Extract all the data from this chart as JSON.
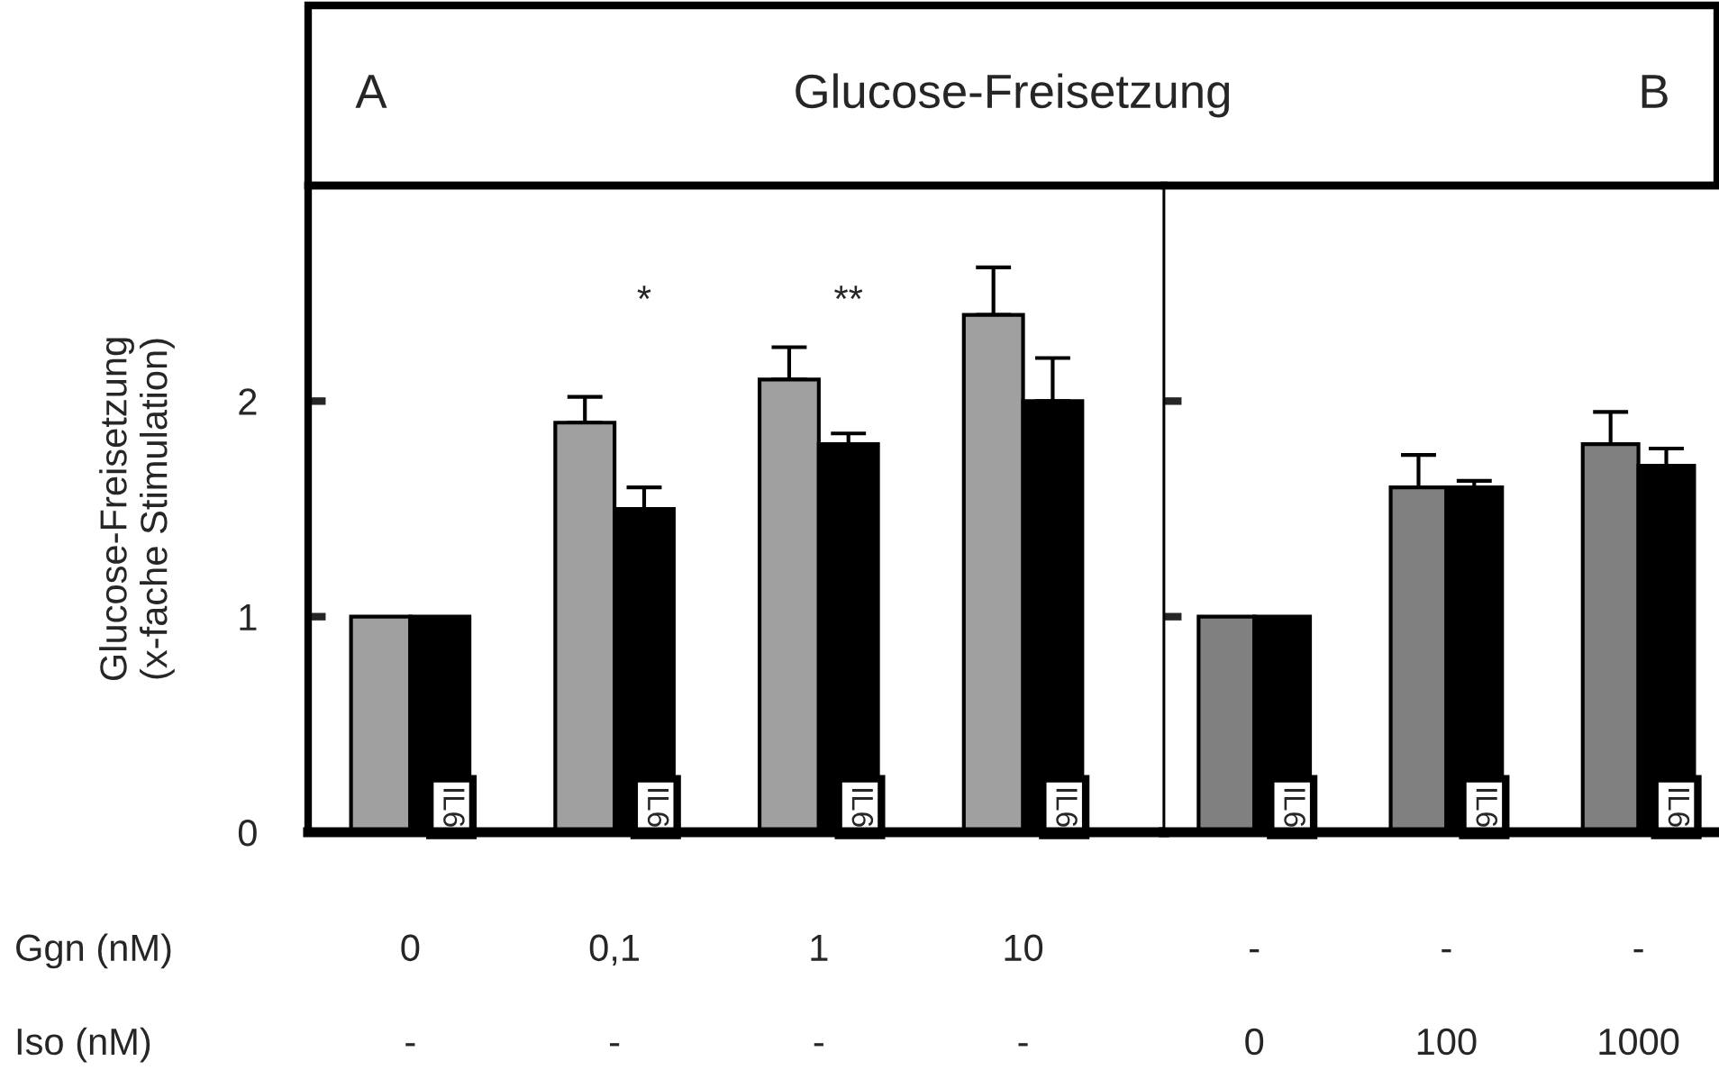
{
  "chart_data": [
    {
      "type": "bar",
      "title": "Glucose-Freisetzung",
      "ylabel": "Glucose-Freisetzung\n(x-fache Stimulation)",
      "categories": [
        "0\n-",
        "0,1\n-",
        "1\n-",
        "10\n-"
      ],
      "series": [
        {
          "color": "#a0a0a0",
          "values": [
            1,
            1.9,
            2.1,
            2.4
          ],
          "errors": [
            null,
            [
              1.9,
              2.02
            ],
            [
              2.1,
              2.25
            ],
            [
              2.4,
              2.62
            ]
          ]
        },
        {
          "name": "IL6",
          "color": "#000000",
          "values": [
            1,
            1.5,
            1.8,
            2.0
          ],
          "errors": [
            null,
            [
              1.5,
              1.6
            ],
            [
              1.8,
              1.85
            ],
            [
              2.0,
              2.2
            ]
          ]
        }
      ],
      "ylim": [
        0,
        3
      ],
      "yticks": [
        0,
        1,
        2
      ],
      "annotations": [
        "A",
        "Ggn (nM)",
        "Iso (nM)",
        "*",
        "**"
      ]
    },
    {
      "type": "bar",
      "categories": [
        "-\n0",
        "-\n100",
        "-\n1000"
      ],
      "series": [
        {
          "color": "#808080",
          "values": [
            1,
            1.6,
            1.8
          ],
          "errors": [
            null,
            [
              1.6,
              1.75
            ],
            [
              1.8,
              1.95
            ]
          ]
        },
        {
          "name": "IL6",
          "color": "#000000",
          "values": [
            1,
            1.6,
            1.7
          ],
          "errors": [
            null,
            [
              1.6,
              1.63
            ],
            [
              1.7,
              1.78
            ]
          ]
        }
      ],
      "ylim": [
        0,
        3
      ],
      "yticks": [
        {
          "value": 1,
          "label": null
        },
        {
          "value": 2,
          "label": null
        }
      ],
      "tick_labels": "x",
      "annotations": [
        "B"
      ]
    }
  ]
}
